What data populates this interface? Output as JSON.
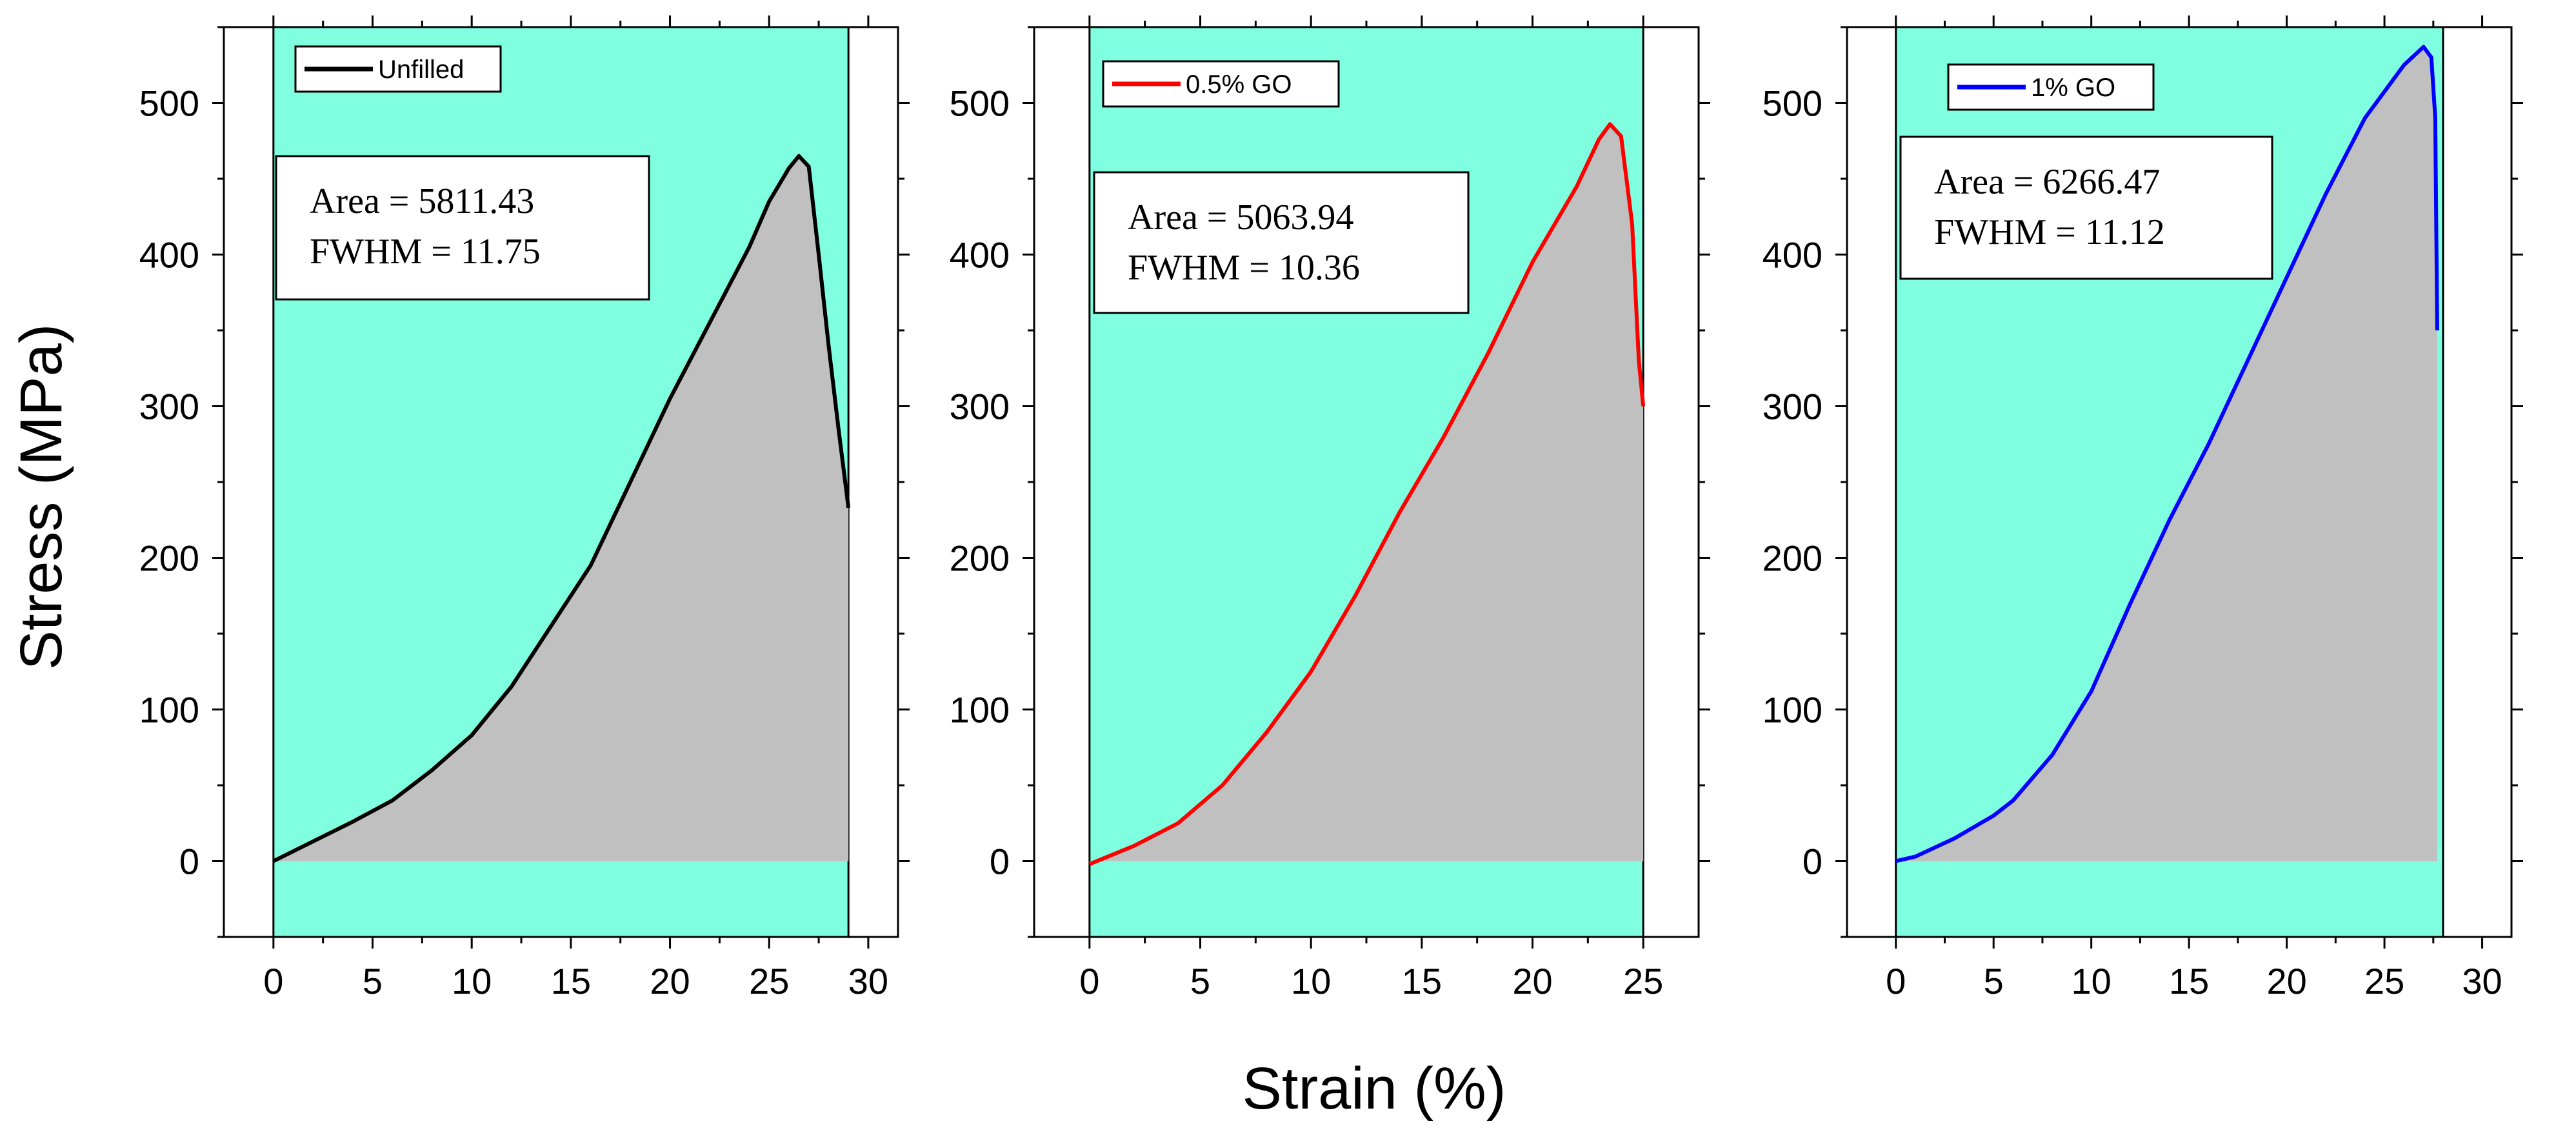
{
  "figure": {
    "ylabel": "Stress (MPa)",
    "xlabel": "Strain (%)"
  },
  "chart_data": [
    {
      "type": "area",
      "name": "Unfilled",
      "color": "#000000",
      "fill_color": "#c0c0c0",
      "background_color": "#7fffe0",
      "xlim": [
        -2.5,
        31.5
      ],
      "ylim": [
        -50,
        550
      ],
      "xticks": [
        0,
        5,
        10,
        15,
        20,
        25,
        30
      ],
      "yticks": [
        0,
        100,
        200,
        300,
        400,
        500
      ],
      "highlight_range": [
        0,
        29
      ],
      "legend": "Unfilled",
      "annotation": [
        "Area = 5811.43",
        "FWHM = 11.75"
      ],
      "x": [
        0,
        2,
        4,
        6,
        8,
        10,
        12,
        14,
        15,
        16,
        18,
        20,
        22,
        24,
        25,
        26,
        26.5,
        27,
        27.5,
        28,
        28.5,
        29
      ],
      "y": [
        0,
        13,
        26,
        40,
        60,
        83,
        115,
        155,
        175,
        195,
        250,
        305,
        355,
        405,
        435,
        457,
        465,
        458,
        400,
        340,
        285,
        233
      ]
    },
    {
      "type": "area",
      "name": "0.5% GO",
      "color": "#ff0000",
      "fill_color": "#c0c0c0",
      "background_color": "#7fffe0",
      "xlim": [
        -2.5,
        27.5
      ],
      "ylim": [
        -50,
        550
      ],
      "xticks": [
        0,
        5,
        10,
        15,
        20,
        25
      ],
      "yticks": [
        0,
        100,
        200,
        300,
        400,
        500
      ],
      "highlight_range": [
        0,
        25
      ],
      "legend": "0.5% GO",
      "annotation": [
        "Area = 5063.94",
        "FWHM = 10.36"
      ],
      "x": [
        0,
        2,
        4,
        6,
        8,
        10,
        12,
        14,
        16,
        18,
        20,
        21,
        22,
        23,
        23.5,
        24,
        24.5,
        24.8,
        25
      ],
      "y": [
        -2,
        10,
        25,
        50,
        85,
        125,
        175,
        230,
        280,
        335,
        395,
        420,
        445,
        476,
        486,
        478,
        420,
        330,
        300
      ]
    },
    {
      "type": "area",
      "name": "1% GO",
      "color": "#0000ff",
      "fill_color": "#c0c0c0",
      "background_color": "#7fffe0",
      "xlim": [
        -2.5,
        31.5
      ],
      "ylim": [
        -50,
        550
      ],
      "xticks": [
        0,
        5,
        10,
        15,
        20,
        25,
        30
      ],
      "yticks": [
        0,
        100,
        200,
        300,
        400,
        500
      ],
      "highlight_range": [
        0,
        28
      ],
      "legend": "1% GO",
      "annotation": [
        "Area = 6266.47",
        "FWHM = 11.12"
      ],
      "x": [
        0,
        1,
        3,
        5,
        6,
        8,
        10,
        12,
        14,
        16,
        18,
        20,
        22,
        24,
        26,
        27,
        27.4,
        27.6,
        27.7
      ],
      "y": [
        0,
        3,
        15,
        30,
        40,
        70,
        112,
        170,
        225,
        275,
        330,
        385,
        440,
        490,
        525,
        537,
        530,
        490,
        350
      ]
    }
  ]
}
